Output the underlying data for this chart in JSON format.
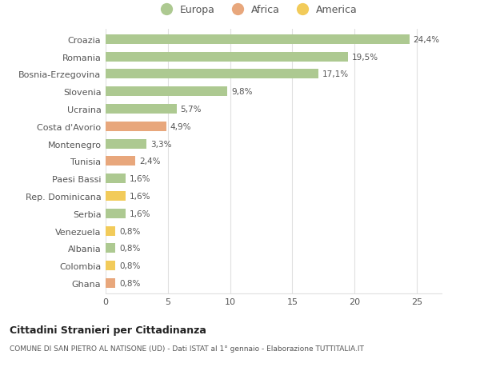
{
  "categories": [
    "Croazia",
    "Romania",
    "Bosnia-Erzegovina",
    "Slovenia",
    "Ucraina",
    "Costa d'Avorio",
    "Montenegro",
    "Tunisia",
    "Paesi Bassi",
    "Rep. Dominicana",
    "Serbia",
    "Venezuela",
    "Albania",
    "Colombia",
    "Ghana"
  ],
  "values": [
    24.4,
    19.5,
    17.1,
    9.8,
    5.7,
    4.9,
    3.3,
    2.4,
    1.6,
    1.6,
    1.6,
    0.8,
    0.8,
    0.8,
    0.8
  ],
  "labels": [
    "24,4%",
    "19,5%",
    "17,1%",
    "9,8%",
    "5,7%",
    "4,9%",
    "3,3%",
    "2,4%",
    "1,6%",
    "1,6%",
    "1,6%",
    "0,8%",
    "0,8%",
    "0,8%",
    "0,8%"
  ],
  "continents": [
    "Europa",
    "Europa",
    "Europa",
    "Europa",
    "Europa",
    "Africa",
    "Europa",
    "Africa",
    "Europa",
    "America",
    "Europa",
    "America",
    "Europa",
    "America",
    "Africa"
  ],
  "colors": {
    "Europa": "#adc991",
    "Africa": "#e8a77c",
    "America": "#f2cb5a"
  },
  "title": "Cittadini Stranieri per Cittadinanza",
  "subtitle": "COMUNE DI SAN PIETRO AL NATISONE (UD) - Dati ISTAT al 1° gennaio - Elaborazione TUTTITALIA.IT",
  "xlim": [
    0,
    27
  ],
  "xticks": [
    0,
    5,
    10,
    15,
    20,
    25
  ],
  "background_color": "#ffffff",
  "bar_height": 0.55,
  "grid_color": "#e0e0e0",
  "text_color": "#555555"
}
